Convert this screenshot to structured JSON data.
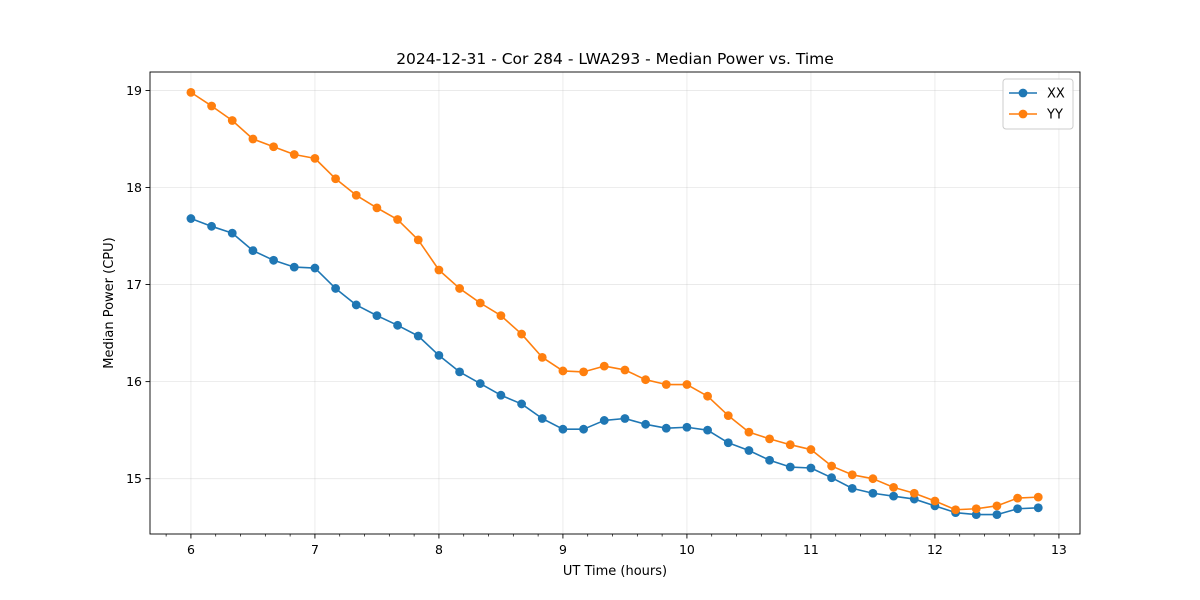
{
  "chart_data": {
    "type": "line",
    "title": "2024-12-31 - Cor 284 - LWA293 - Median Power vs. Time",
    "xlabel": "UT Time (hours)",
    "ylabel": "Median Power (CPU)",
    "xlim": [
      5.67,
      13.17
    ],
    "ylim": [
      14.43,
      19.19
    ],
    "xticks": [
      6,
      7,
      8,
      9,
      10,
      11,
      12,
      13
    ],
    "yticks": [
      15,
      16,
      17,
      18,
      19
    ],
    "grid": true,
    "legend_position": "top-right",
    "x": [
      6.0,
      6.1667,
      6.3333,
      6.5,
      6.6667,
      6.8333,
      7.0,
      7.1667,
      7.3333,
      7.5,
      7.6667,
      7.8333,
      8.0,
      8.1667,
      8.3333,
      8.5,
      8.6667,
      8.8333,
      9.0,
      9.1667,
      9.3333,
      9.5,
      9.6667,
      9.8333,
      10.0,
      10.1667,
      10.3333,
      10.5,
      10.6667,
      10.8333,
      11.0,
      11.1667,
      11.3333,
      11.5,
      11.6667,
      11.8333,
      12.0,
      12.1667,
      12.3333,
      12.5,
      12.6667,
      12.8333
    ],
    "series": [
      {
        "name": "XX",
        "color": "#1f77b4",
        "values": [
          17.68,
          17.6,
          17.53,
          17.35,
          17.25,
          17.18,
          17.17,
          16.96,
          16.79,
          16.68,
          16.58,
          16.47,
          16.27,
          16.1,
          15.98,
          15.86,
          15.77,
          15.62,
          15.51,
          15.51,
          15.6,
          15.62,
          15.56,
          15.52,
          15.53,
          15.5,
          15.37,
          15.29,
          15.19,
          15.12,
          15.11,
          15.01,
          14.9,
          14.85,
          14.82,
          14.79,
          14.72,
          14.65,
          14.63,
          14.63,
          14.69,
          14.7
        ]
      },
      {
        "name": "YY",
        "color": "#ff7f0e",
        "values": [
          18.98,
          18.84,
          18.69,
          18.5,
          18.42,
          18.34,
          18.3,
          18.09,
          17.92,
          17.79,
          17.67,
          17.46,
          17.15,
          16.96,
          16.81,
          16.68,
          16.49,
          16.25,
          16.11,
          16.1,
          16.16,
          16.12,
          16.02,
          15.97,
          15.97,
          15.85,
          15.65,
          15.48,
          15.41,
          15.35,
          15.3,
          15.13,
          15.04,
          15.0,
          14.91,
          14.85,
          14.77,
          14.68,
          14.69,
          14.72,
          14.8,
          14.81
        ]
      }
    ]
  }
}
